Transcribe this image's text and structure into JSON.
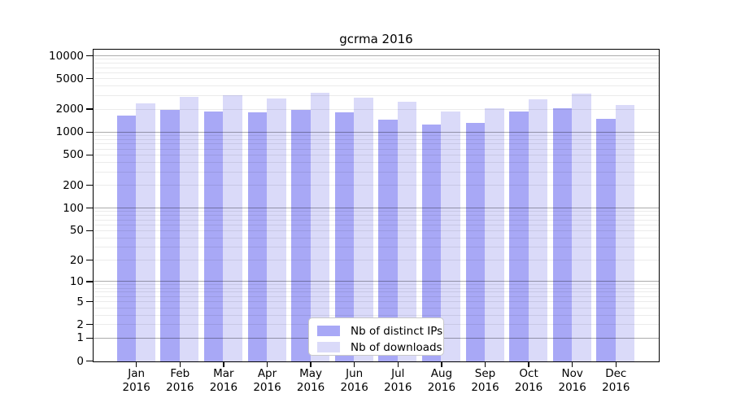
{
  "page": {
    "background": "#ffffff"
  },
  "chart": {
    "title": "gcrma 2016",
    "legend_items": [
      {
        "label": "Nb of distinct IPs"
      },
      {
        "label": "Nb of downloads"
      }
    ]
  },
  "chart_data": {
    "type": "bar",
    "title": "gcrma 2016",
    "categories": [
      "Jan",
      "Feb",
      "Mar",
      "Apr",
      "May",
      "Jun",
      "Jul",
      "Aug",
      "Sep",
      "Oct",
      "Nov",
      "Dec"
    ],
    "x_tick_second_line": "2016",
    "series": [
      {
        "name": "Nb of distinct IPs",
        "color": "#a8a8f6",
        "values": [
          1680,
          1980,
          1880,
          1820,
          1960,
          1840,
          1460,
          1260,
          1340,
          1900,
          2060,
          1520
        ]
      },
      {
        "name": "Nb of downloads",
        "color": "#dadaf9",
        "values": [
          2390,
          2930,
          3050,
          2790,
          3290,
          2860,
          2530,
          1870,
          2060,
          2720,
          3230,
          2290
        ]
      }
    ],
    "y_scale": "log10(value+1), 0 at axis bottom",
    "y_ticks": [
      10000,
      5000,
      2000,
      1000,
      500,
      200,
      100,
      50,
      20,
      10,
      5,
      2,
      1,
      0
    ],
    "y_axis_top_value": 12700,
    "grid": {
      "enabled": true,
      "major_values": [
        1,
        10,
        100,
        1000,
        10000
      ],
      "minor_steps_per_decade": [
        2,
        3,
        4,
        5,
        6,
        7,
        8,
        9
      ],
      "major_color": "rgba(0,0,0,0.33)",
      "minor_color": "rgba(0,0,0,0.08)"
    },
    "legend_position": "inside lower center",
    "axis_color": "#000000",
    "xlabel": "",
    "ylabel": ""
  }
}
